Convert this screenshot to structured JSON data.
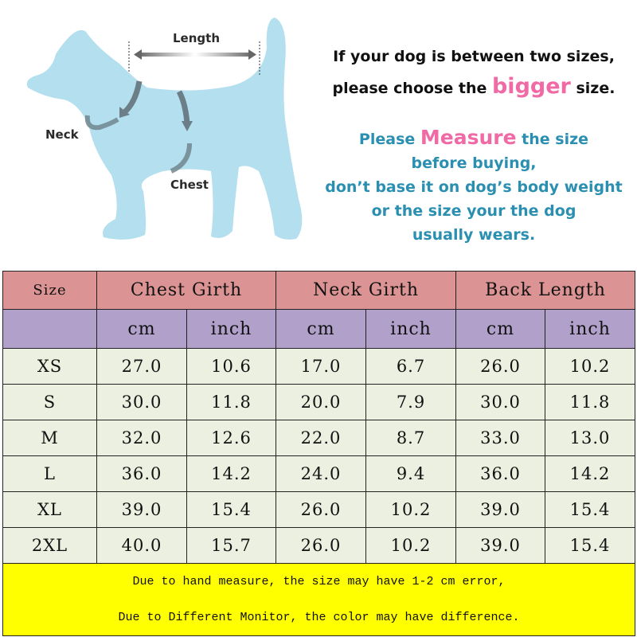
{
  "diagram": {
    "length_label": "Length",
    "neck_label": "Neck",
    "chest_label": "Chest",
    "dog_color": "#b3dfee"
  },
  "notice": {
    "line1": "If your dog is between two sizes,",
    "line2_pre": "please choose the ",
    "line2_em": "bigger",
    "line2_post": " size.",
    "line3_pre": "Please ",
    "line3_em": "Measure",
    "line3_post": " the size",
    "line4": "before buying,",
    "line5": "don’t base it on dog’s body weight",
    "line6": "or the size your the dog",
    "line7": "usually wears."
  },
  "table": {
    "headers": [
      "Size",
      "Chest Girth",
      "Neck Girth",
      "Back Length"
    ],
    "units": [
      "cm",
      "inch",
      "cm",
      "inch",
      "cm",
      "inch"
    ],
    "rows": [
      [
        "XS",
        "27.0",
        "10.6",
        "17.0",
        "6.7",
        "26.0",
        "10.2"
      ],
      [
        "S",
        "30.0",
        "11.8",
        "20.0",
        "7.9",
        "30.0",
        "11.8"
      ],
      [
        "M",
        "32.0",
        "12.6",
        "22.0",
        "8.7",
        "33.0",
        "13.0"
      ],
      [
        "L",
        "36.0",
        "14.2",
        "24.0",
        "9.4",
        "36.0",
        "14.2"
      ],
      [
        "XL",
        "39.0",
        "15.4",
        "26.0",
        "10.2",
        "39.0",
        "15.4"
      ],
      [
        "2XL",
        "40.0",
        "15.7",
        "26.0",
        "10.2",
        "39.0",
        "15.4"
      ]
    ],
    "footer_line1": "Due to hand measure, the size may have 1-2 cm error,",
    "footer_line2": "Due to Different Monitor, the color may have difference.",
    "colors": {
      "header": "#db9493",
      "units": "#b0a0ca",
      "rows": "#ecf0e0",
      "footer": "#ffff00"
    }
  }
}
